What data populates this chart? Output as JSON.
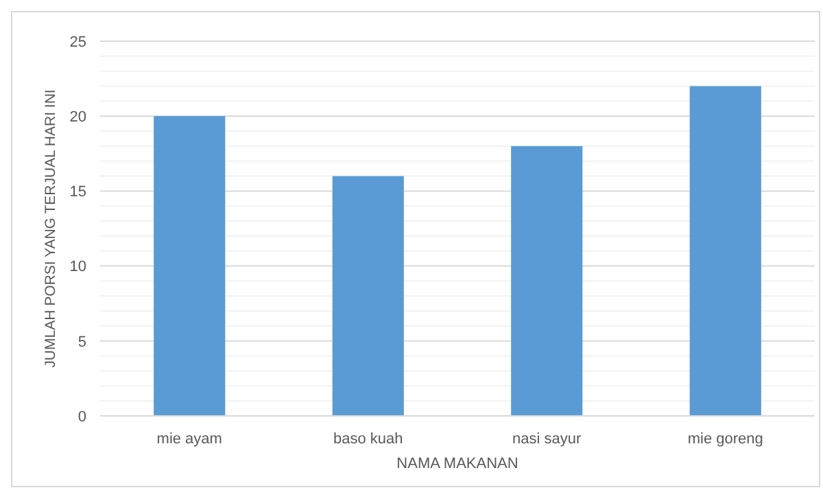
{
  "chart_data": {
    "type": "bar",
    "xlabel": "NAMA MAKANAN",
    "ylabel": "JUMLAH PORSI YANG TERJUAL HARI INI",
    "categories": [
      "mie ayam",
      "baso kuah",
      "nasi sayur",
      "mie goreng"
    ],
    "values": [
      20,
      16,
      18,
      22
    ],
    "color": "#5b9bd5",
    "ylim": [
      0,
      25
    ],
    "yticks": [
      0,
      {
        "value": 1,
        "label": null
      },
      {
        "value": 2,
        "label": null
      },
      {
        "value": 3,
        "label": null
      },
      {
        "value": 4,
        "label": null
      },
      5,
      {
        "value": 6,
        "label": null
      },
      {
        "value": 7,
        "label": null
      },
      {
        "value": 8,
        "label": null
      },
      {
        "value": 9,
        "label": null
      },
      10,
      {
        "value": 11,
        "label": null
      },
      {
        "value": 12,
        "label": null
      },
      {
        "value": 13,
        "label": null
      },
      {
        "value": 14,
        "label": null
      },
      15,
      {
        "value": 16,
        "label": null
      },
      {
        "value": 17,
        "label": null
      },
      {
        "value": 18,
        "label": null
      },
      {
        "value": 19,
        "label": null
      },
      20,
      {
        "value": 21,
        "label": null
      },
      {
        "value": 22,
        "label": null
      },
      {
        "value": 23,
        "label": null
      },
      {
        "value": 24,
        "label": null
      },
      25
    ],
    "grid": "y"
  }
}
